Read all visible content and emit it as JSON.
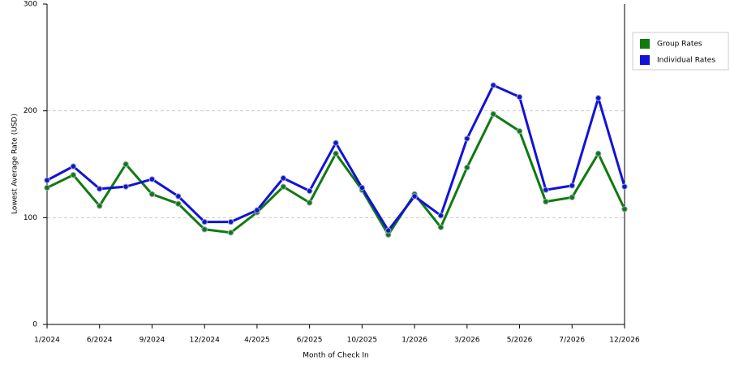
{
  "chart_data": {
    "type": "line",
    "x_label": "Month of Check In",
    "y_label": "Lowest Average Rate (USD)",
    "categories": [
      "1/2024",
      null,
      "6/2024",
      null,
      "9/2024",
      null,
      "12/2024",
      null,
      "4/2025",
      null,
      "6/2025",
      null,
      "10/2025",
      null,
      "1/2026",
      null,
      "3/2026",
      null,
      "5/2026",
      null,
      "7/2026",
      null,
      "12/2026"
    ],
    "series": [
      {
        "name": "Group Rates",
        "color": "#107a10",
        "values": [
          128,
          140,
          111,
          150,
          122,
          113,
          89,
          86,
          105,
          129,
          114,
          160,
          126,
          84,
          122,
          91,
          147,
          197,
          181,
          115,
          119,
          160,
          108
        ]
      },
      {
        "name": "Individual Rates",
        "color": "#1212d8",
        "values": [
          135,
          148,
          127,
          129,
          136,
          120,
          96,
          96,
          107,
          137,
          125,
          170,
          128,
          88,
          120,
          102,
          174,
          224,
          213,
          126,
          130,
          212,
          129
        ]
      }
    ],
    "ylim": [
      0,
      300
    ],
    "yticks": [
      0,
      100,
      200,
      300
    ],
    "grid": true,
    "legend": "right"
  }
}
